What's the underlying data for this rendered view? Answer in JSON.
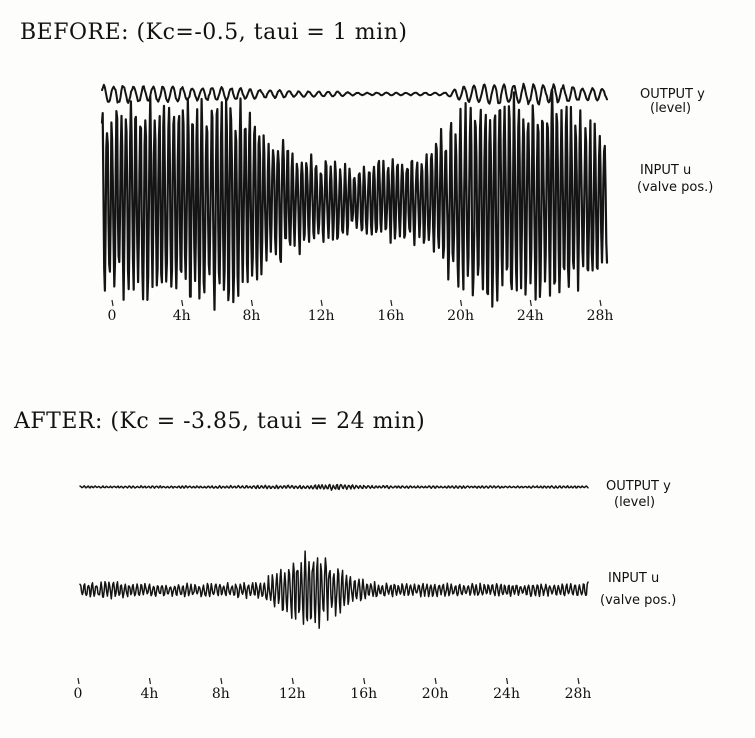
{
  "chart_data": [
    {
      "type": "line",
      "title": "BEFORE: (Kc=-0.5, taui = 1 min)",
      "x_ticks": [
        "0",
        "4h",
        "8h",
        "12h",
        "16h",
        "20h",
        "24h",
        "28h"
      ],
      "xlim": [
        0,
        28
      ],
      "series": [
        {
          "name": "OUTPUT y (level)",
          "name_lines": [
            "OUTPUT y",
            "(level)"
          ],
          "points": [
            [
              0,
              0.7
            ],
            [
              1,
              0.7
            ],
            [
              2,
              0.6
            ],
            [
              3,
              0.6
            ],
            [
              4,
              0.6
            ],
            [
              5,
              0.5
            ],
            [
              6,
              0.5
            ],
            [
              7,
              0.5
            ],
            [
              8,
              0.4
            ],
            [
              9,
              0.3
            ],
            [
              10,
              0.3
            ],
            [
              11,
              0.2
            ],
            [
              12,
              0.2
            ],
            [
              13,
              0.2
            ],
            [
              14,
              0.1
            ],
            [
              15,
              0.1
            ],
            [
              16,
              0.1
            ],
            [
              17,
              0.1
            ],
            [
              18,
              0.1
            ],
            [
              19,
              0.1
            ],
            [
              20,
              0.6
            ],
            [
              21,
              0.7
            ],
            [
              22,
              0.8
            ],
            [
              23,
              0.8
            ],
            [
              24,
              0.8
            ],
            [
              25,
              0.7
            ],
            [
              26,
              0.6
            ],
            [
              27,
              0.5
            ],
            [
              28,
              0.4
            ]
          ]
        },
        {
          "name": "INPUT u (valve pos.)",
          "name_lines": [
            "INPUT u",
            "(valve pos.)"
          ],
          "points": [
            [
              0,
              0.9
            ],
            [
              1,
              0.9
            ],
            [
              2,
              1.0
            ],
            [
              3,
              1.0
            ],
            [
              4,
              1.0
            ],
            [
              5,
              1.0
            ],
            [
              6,
              1.0
            ],
            [
              7,
              1.0
            ],
            [
              8,
              0.9
            ],
            [
              9,
              0.7
            ],
            [
              10,
              0.6
            ],
            [
              11,
              0.5
            ],
            [
              12,
              0.4
            ],
            [
              13,
              0.4
            ],
            [
              14,
              0.3
            ],
            [
              15,
              0.4
            ],
            [
              16,
              0.4
            ],
            [
              17,
              0.4
            ],
            [
              18,
              0.5
            ],
            [
              19,
              0.7
            ],
            [
              20,
              0.9
            ],
            [
              21,
              1.0
            ],
            [
              22,
              1.0
            ],
            [
              23,
              1.0
            ],
            [
              24,
              1.0
            ],
            [
              25,
              1.0
            ],
            [
              26,
              0.9
            ],
            [
              27,
              0.8
            ],
            [
              28,
              0.6
            ]
          ]
        }
      ]
    },
    {
      "type": "line",
      "title": "AFTER: (Kc = -3.85, taui = 24 min)",
      "x_ticks": [
        "0",
        "4h",
        "8h",
        "12h",
        "16h",
        "20h",
        "24h",
        "28h"
      ],
      "xlim": [
        0,
        28
      ],
      "series": [
        {
          "name": "OUTPUT y (level)",
          "name_lines": [
            "OUTPUT y",
            "(level)"
          ],
          "points": [
            [
              0,
              0.05
            ],
            [
              2,
              0.04
            ],
            [
              4,
              0.05
            ],
            [
              6,
              0.05
            ],
            [
              8,
              0.06
            ],
            [
              10,
              0.08
            ],
            [
              12,
              0.07
            ],
            [
              13,
              0.1
            ],
            [
              14,
              0.14
            ],
            [
              15,
              0.1
            ],
            [
              16,
              0.07
            ],
            [
              18,
              0.06
            ],
            [
              20,
              0.05
            ],
            [
              22,
              0.05
            ],
            [
              24,
              0.04
            ],
            [
              26,
              0.05
            ],
            [
              28,
              0.05
            ]
          ]
        },
        {
          "name": "INPUT u (valve pos.)",
          "name_lines": [
            "INPUT u",
            "(valve pos.)"
          ],
          "points": [
            [
              0,
              0.15
            ],
            [
              1,
              0.2
            ],
            [
              2,
              0.2
            ],
            [
              3,
              0.15
            ],
            [
              4,
              0.15
            ],
            [
              5,
              0.15
            ],
            [
              6,
              0.15
            ],
            [
              7,
              0.15
            ],
            [
              8,
              0.15
            ],
            [
              9,
              0.2
            ],
            [
              10,
              0.2
            ],
            [
              11,
              0.5
            ],
            [
              12,
              0.9
            ],
            [
              13,
              1.0
            ],
            [
              14,
              0.7
            ],
            [
              15,
              0.3
            ],
            [
              16,
              0.2
            ],
            [
              17,
              0.15
            ],
            [
              18,
              0.15
            ],
            [
              19,
              0.15
            ],
            [
              20,
              0.15
            ],
            [
              21,
              0.15
            ],
            [
              22,
              0.15
            ],
            [
              23,
              0.15
            ],
            [
              24,
              0.15
            ],
            [
              25,
              0.15
            ],
            [
              26,
              0.15
            ],
            [
              27,
              0.15
            ],
            [
              28,
              0.2
            ]
          ]
        }
      ]
    }
  ]
}
